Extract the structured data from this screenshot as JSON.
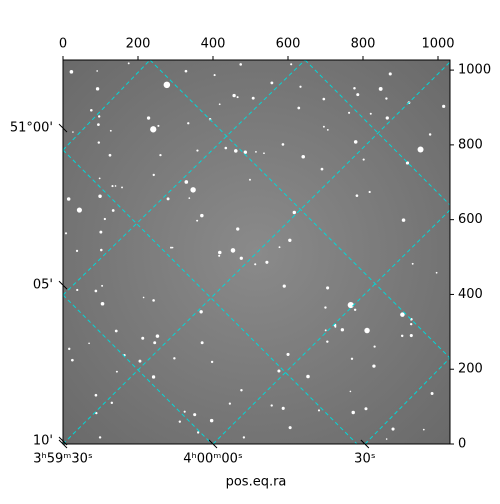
{
  "chart_data": {
    "type": "image",
    "xlabel": "pos.eq.ra",
    "xlim": [
      0,
      1032
    ],
    "ylim": [
      0,
      1027
    ],
    "xticks": [
      0,
      200,
      400,
      600,
      800,
      1000
    ],
    "yticks": [
      0,
      200,
      400,
      600,
      800,
      1000
    ],
    "ra_ticks": [
      {
        "value": 0,
        "label": "3ʰ59ᵐ30ˢ"
      },
      {
        "value": 400,
        "label": "4ʰ00ᵐ00ˢ"
      },
      {
        "value": 805,
        "label": "30ˢ"
      }
    ],
    "dec_ticks": [
      {
        "value": 845,
        "label": "51°00'"
      },
      {
        "value": 425,
        "label": "05'"
      },
      {
        "value": 8,
        "label": "10'"
      }
    ],
    "grid_color": "#00d8d8"
  }
}
